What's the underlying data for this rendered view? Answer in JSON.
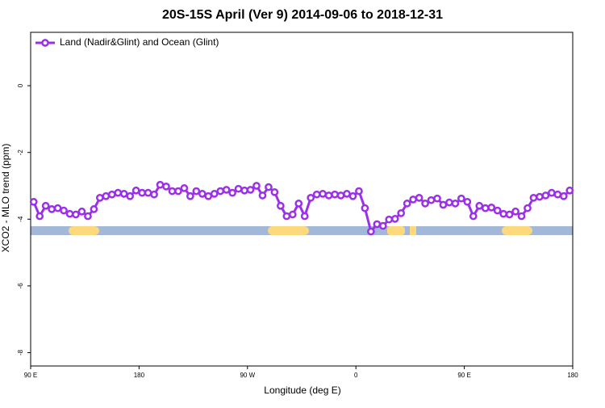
{
  "chart_data": {
    "type": "line",
    "title": "20S-15S April (Ver 9)   2014-09-06 to 2018-12-31",
    "x_label": "Longitude (deg E)",
    "y_label": "XCO2 - MLO trend (ppm)",
    "xlim": [
      90,
      540
    ],
    "xticks": [
      {
        "value": 90,
        "label": "90 E"
      },
      180,
      {
        "value": 270,
        "label": "90 W"
      },
      {
        "value": 360,
        "label": "0"
      },
      {
        "value": 450,
        "label": "90 E"
      },
      {
        "value": 540,
        "label": "180"
      }
    ],
    "ylim": [
      -8.4,
      1.6
    ],
    "yticks": [
      -8,
      -6,
      -4,
      -2,
      0
    ],
    "legend": "top-left",
    "x": [
      92.5,
      97.5,
      102.5,
      107.5,
      112.5,
      117.5,
      122.5,
      127.5,
      132.5,
      137.5,
      142.5,
      147.5,
      152.5,
      157.5,
      162.5,
      167.5,
      172.5,
      177.5,
      182.5,
      187.5,
      192.5,
      197.5,
      202.5,
      207.5,
      212.5,
      217.5,
      222.5,
      227.5,
      232.5,
      237.5,
      242.5,
      247.5,
      252.5,
      257.5,
      262.5,
      267.5,
      272.5,
      277.5,
      282.5,
      287.5,
      292.5,
      297.5,
      302.5,
      307.5,
      312.5,
      317.5,
      322.5,
      327.5,
      332.5,
      337.5,
      342.5,
      347.5,
      352.5,
      357.5,
      362.5,
      367.5,
      372.5,
      377.5,
      382.5,
      387.5,
      392.5,
      397.5,
      402.5,
      407.5,
      412.5,
      417.5,
      422.5,
      427.5,
      432.5,
      437.5,
      442.5,
      447.5,
      452.5,
      457.5,
      462.5,
      467.5,
      472.5,
      477.5,
      482.5,
      487.5,
      492.5,
      497.5,
      502.5,
      507.5,
      512.5,
      517.5,
      522.5,
      527.5,
      532.5,
      537.5
    ],
    "series": [
      {
        "name": "Land (Nadir&Glint) and Ocean (Glint)",
        "color": "#9b30e8",
        "values": [
          -3.48,
          -3.91,
          -3.6,
          -3.7,
          -3.67,
          -3.74,
          -3.84,
          -3.86,
          -3.77,
          -3.91,
          -3.7,
          -3.36,
          -3.31,
          -3.26,
          -3.21,
          -3.24,
          -3.31,
          -3.14,
          -3.21,
          -3.21,
          -3.26,
          -2.97,
          -3.02,
          -3.16,
          -3.16,
          -3.07,
          -3.31,
          -3.16,
          -3.24,
          -3.31,
          -3.24,
          -3.16,
          -3.12,
          -3.21,
          -3.09,
          -3.14,
          -3.12,
          -3.0,
          -3.29,
          -3.04,
          -3.19,
          -3.6,
          -3.91,
          -3.86,
          -3.53,
          -3.91,
          -3.36,
          -3.26,
          -3.24,
          -3.29,
          -3.26,
          -3.29,
          -3.24,
          -3.31,
          -3.16,
          -3.67,
          -4.37,
          -4.15,
          -4.2,
          -4.01,
          -3.99,
          -3.82,
          -3.53,
          -3.41,
          -3.36,
          -3.53,
          -3.43,
          -3.38,
          -3.57,
          -3.5,
          -3.53,
          -3.38,
          -3.48,
          -3.91,
          -3.6,
          -3.67,
          -3.65,
          -3.74,
          -3.84,
          -3.86,
          -3.77,
          -3.91,
          -3.67,
          -3.36,
          -3.33,
          -3.29,
          -3.21,
          -3.26,
          -3.31,
          -3.14
        ]
      }
    ]
  }
}
